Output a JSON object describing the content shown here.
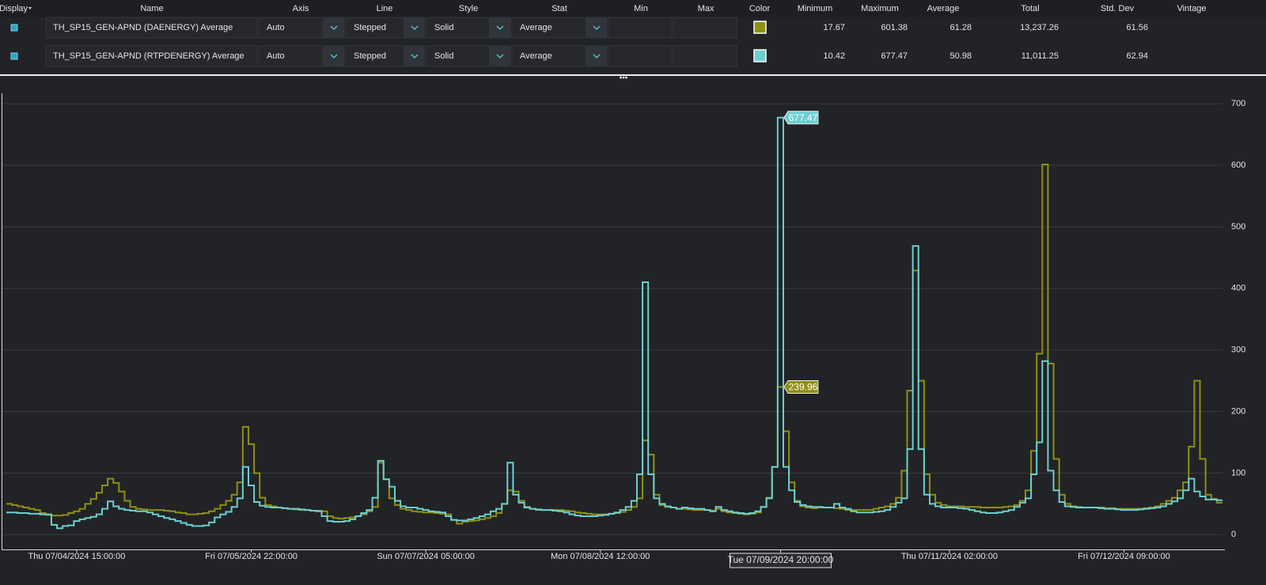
{
  "table": {
    "columns": [
      "Display",
      "Name",
      "Axis",
      "Line",
      "Style",
      "Stat",
      "Min",
      "Max",
      "Color",
      "Minimum",
      "Maximum",
      "Average",
      "Total",
      "Std. Dev",
      "Vintage"
    ],
    "rows": [
      {
        "name": "TH_SP15_GEN-APND (DAENERGY) Average",
        "axis": "Auto",
        "line": "Stepped",
        "style": "Solid",
        "stat": "Average",
        "minimum": "17.67",
        "maximum": "601.38",
        "average": "61.28",
        "total": "13,237.26",
        "std_dev": "61.56"
      },
      {
        "name": "TH_SP15_GEN-APND (RTPDENERGY) Average",
        "axis": "Auto",
        "line": "Stepped",
        "style": "Solid",
        "stat": "Average",
        "minimum": "10.42",
        "maximum": "677.47",
        "average": "50.98",
        "total": "11,011.25",
        "std_dev": "62.94"
      }
    ]
  },
  "chart_data": {
    "type": "step",
    "grid": true,
    "ylim": [
      -24,
      717
    ],
    "yticks": [
      0,
      100,
      200,
      300,
      400,
      500,
      600,
      700
    ],
    "tooltip_x": "07/09/2024 20:00",
    "xticks": [
      {
        "value": "07/04/2024 15:00",
        "label": "Thu 07/04/2024 15:00:00"
      },
      {
        "value": "07/05/2024 22:00",
        "label": "Fri 07/05/2024 22:00:00"
      },
      {
        "value": "07/07/2024 05:00",
        "label": "Sun 07/07/2024 05:00:00"
      },
      {
        "value": "07/08/2024 12:00",
        "label": "Mon 07/08/2024 12:00:00"
      },
      {
        "value": "07/09/2024 20:00",
        "label": "Tue 07/09/2024 20:00:00"
      },
      {
        "value": "07/11/2024 02:00",
        "label": "Thu 07/11/2024 02:00:00"
      },
      {
        "value": "07/12/2024 09:00",
        "label": "Fri 07/12/2024 09:00:00"
      }
    ],
    "x": [
      "07/04/2024 03:00",
      "07/04/2024 04:00",
      "07/04/2024 05:00",
      "07/04/2024 06:00",
      "07/04/2024 07:00",
      "07/04/2024 08:00",
      "07/04/2024 09:00",
      "07/04/2024 10:00",
      "07/04/2024 11:00",
      "07/04/2024 12:00",
      "07/04/2024 13:00",
      "07/04/2024 14:00",
      "07/04/2024 15:00",
      "07/04/2024 16:00",
      "07/04/2024 17:00",
      "07/04/2024 18:00",
      "07/04/2024 19:00",
      "07/04/2024 20:00",
      "07/04/2024 21:00",
      "07/04/2024 22:00",
      "07/04/2024 23:00",
      "07/05/2024 00:00",
      "07/05/2024 01:00",
      "07/05/2024 02:00",
      "07/05/2024 03:00",
      "07/05/2024 04:00",
      "07/05/2024 05:00",
      "07/05/2024 06:00",
      "07/05/2024 07:00",
      "07/05/2024 08:00",
      "07/05/2024 09:00",
      "07/05/2024 10:00",
      "07/05/2024 11:00",
      "07/05/2024 12:00",
      "07/05/2024 13:00",
      "07/05/2024 14:00",
      "07/05/2024 15:00",
      "07/05/2024 16:00",
      "07/05/2024 17:00",
      "07/05/2024 18:00",
      "07/05/2024 19:00",
      "07/05/2024 20:00",
      "07/05/2024 21:00",
      "07/05/2024 22:00",
      "07/05/2024 23:00",
      "07/06/2024 00:00",
      "07/06/2024 01:00",
      "07/06/2024 02:00",
      "07/06/2024 03:00",
      "07/06/2024 04:00",
      "07/06/2024 05:00",
      "07/06/2024 06:00",
      "07/06/2024 07:00",
      "07/06/2024 08:00",
      "07/06/2024 09:00",
      "07/06/2024 10:00",
      "07/06/2024 11:00",
      "07/06/2024 12:00",
      "07/06/2024 13:00",
      "07/06/2024 14:00",
      "07/06/2024 15:00",
      "07/06/2024 16:00",
      "07/06/2024 17:00",
      "07/06/2024 18:00",
      "07/06/2024 19:00",
      "07/06/2024 20:00",
      "07/06/2024 21:00",
      "07/06/2024 22:00",
      "07/06/2024 23:00",
      "07/07/2024 00:00",
      "07/07/2024 01:00",
      "07/07/2024 02:00",
      "07/07/2024 03:00",
      "07/07/2024 04:00",
      "07/07/2024 05:00",
      "07/07/2024 06:00",
      "07/07/2024 07:00",
      "07/07/2024 08:00",
      "07/07/2024 09:00",
      "07/07/2024 10:00",
      "07/07/2024 11:00",
      "07/07/2024 12:00",
      "07/07/2024 13:00",
      "07/07/2024 14:00",
      "07/07/2024 15:00",
      "07/07/2024 16:00",
      "07/07/2024 17:00",
      "07/07/2024 18:00",
      "07/07/2024 19:00",
      "07/07/2024 20:00",
      "07/07/2024 21:00",
      "07/07/2024 22:00",
      "07/07/2024 23:00",
      "07/08/2024 00:00",
      "07/08/2024 01:00",
      "07/08/2024 02:00",
      "07/08/2024 03:00",
      "07/08/2024 04:00",
      "07/08/2024 05:00",
      "07/08/2024 06:00",
      "07/08/2024 07:00",
      "07/08/2024 08:00",
      "07/08/2024 09:00",
      "07/08/2024 10:00",
      "07/08/2024 11:00",
      "07/08/2024 12:00",
      "07/08/2024 13:00",
      "07/08/2024 14:00",
      "07/08/2024 15:00",
      "07/08/2024 16:00",
      "07/08/2024 17:00",
      "07/08/2024 18:00",
      "07/08/2024 19:00",
      "07/08/2024 20:00",
      "07/08/2024 21:00",
      "07/08/2024 22:00",
      "07/08/2024 23:00",
      "07/09/2024 00:00",
      "07/09/2024 01:00",
      "07/09/2024 02:00",
      "07/09/2024 03:00",
      "07/09/2024 04:00",
      "07/09/2024 05:00",
      "07/09/2024 06:00",
      "07/09/2024 07:00",
      "07/09/2024 08:00",
      "07/09/2024 09:00",
      "07/09/2024 10:00",
      "07/09/2024 11:00",
      "07/09/2024 12:00",
      "07/09/2024 13:00",
      "07/09/2024 14:00",
      "07/09/2024 15:00",
      "07/09/2024 16:00",
      "07/09/2024 17:00",
      "07/09/2024 18:00",
      "07/09/2024 19:00",
      "07/09/2024 20:00",
      "07/09/2024 21:00",
      "07/09/2024 22:00",
      "07/09/2024 23:00",
      "07/10/2024 00:00",
      "07/10/2024 01:00",
      "07/10/2024 02:00",
      "07/10/2024 03:00",
      "07/10/2024 04:00",
      "07/10/2024 05:00",
      "07/10/2024 06:00",
      "07/10/2024 07:00",
      "07/10/2024 08:00",
      "07/10/2024 09:00",
      "07/10/2024 10:00",
      "07/10/2024 11:00",
      "07/10/2024 12:00",
      "07/10/2024 13:00",
      "07/10/2024 14:00",
      "07/10/2024 15:00",
      "07/10/2024 16:00",
      "07/10/2024 17:00",
      "07/10/2024 18:00",
      "07/10/2024 19:00",
      "07/10/2024 20:00",
      "07/10/2024 21:00",
      "07/10/2024 22:00",
      "07/10/2024 23:00",
      "07/11/2024 00:00",
      "07/11/2024 01:00",
      "07/11/2024 02:00",
      "07/11/2024 03:00",
      "07/11/2024 04:00",
      "07/11/2024 05:00",
      "07/11/2024 06:00",
      "07/11/2024 07:00",
      "07/11/2024 08:00",
      "07/11/2024 09:00",
      "07/11/2024 10:00",
      "07/11/2024 11:00",
      "07/11/2024 12:00",
      "07/11/2024 13:00",
      "07/11/2024 14:00",
      "07/11/2024 15:00",
      "07/11/2024 16:00",
      "07/11/2024 17:00",
      "07/11/2024 18:00",
      "07/11/2024 19:00",
      "07/11/2024 20:00",
      "07/11/2024 21:00",
      "07/11/2024 22:00",
      "07/11/2024 23:00",
      "07/12/2024 00:00",
      "07/12/2024 01:00",
      "07/12/2024 02:00",
      "07/12/2024 03:00",
      "07/12/2024 04:00",
      "07/12/2024 05:00",
      "07/12/2024 06:00",
      "07/12/2024 07:00",
      "07/12/2024 08:00",
      "07/12/2024 09:00",
      "07/12/2024 10:00",
      "07/12/2024 11:00",
      "07/12/2024 12:00",
      "07/12/2024 13:00",
      "07/12/2024 14:00",
      "07/12/2024 15:00",
      "07/12/2024 16:00",
      "07/12/2024 17:00",
      "07/12/2024 18:00",
      "07/12/2024 19:00",
      "07/12/2024 20:00",
      "07/12/2024 21:00",
      "07/12/2024 22:00",
      "07/12/2024 23:00",
      "07/13/2024 00:00",
      "07/13/2024 01:00",
      "07/13/2024 02:00"
    ],
    "series": [
      {
        "color": "#8f8f14",
        "values": [
          50,
          48,
          46,
          44,
          42,
          40,
          35,
          32,
          31,
          31,
          32,
          35,
          38,
          42,
          50,
          58,
          68,
          80,
          91,
          84,
          70,
          55,
          45,
          42,
          41,
          40,
          40,
          40,
          39,
          38,
          36,
          35,
          33,
          33,
          34,
          35,
          38,
          42,
          48,
          55,
          65,
          85,
          175,
          147,
          100,
          60,
          48,
          46,
          44,
          43,
          42,
          41,
          40,
          40,
          39,
          39,
          38,
          30,
          27,
          26,
          27,
          28,
          30,
          33,
          38,
          45,
          117,
          90,
          59,
          48,
          42,
          40,
          38,
          37,
          36,
          36,
          35,
          34,
          33,
          24,
          17.67,
          21,
          22,
          23,
          25,
          27,
          30,
          35,
          50,
          72,
          70,
          55,
          45,
          42,
          40,
          40,
          40,
          40,
          40,
          39,
          38,
          36,
          35,
          34,
          33,
          33,
          33,
          34,
          35,
          37,
          40,
          45,
          59,
          153,
          130,
          65,
          48,
          45,
          44,
          42,
          42,
          41,
          40,
          40,
          40,
          39,
          42,
          38,
          36,
          35,
          34,
          33,
          34,
          36,
          45,
          60,
          110,
          239.96,
          168,
          85,
          55,
          46,
          44,
          43,
          44,
          44,
          44,
          43,
          42,
          40,
          40,
          40,
          40,
          40,
          42,
          44,
          46,
          50,
          60,
          104,
          234,
          429,
          250,
          98,
          65,
          52,
          48,
          46,
          46,
          46,
          45,
          45,
          45,
          44,
          44,
          44,
          44,
          45,
          46,
          48,
          55,
          72,
          136,
          294,
          601.38,
          278,
          123,
          65,
          50,
          46,
          45,
          44,
          44,
          44,
          44,
          43,
          43,
          42,
          42,
          42,
          42,
          42,
          43,
          44,
          46,
          50,
          55,
          60,
          72,
          85,
          143,
          250,
          123,
          65,
          58,
          52
        ]
      },
      {
        "color": "#6ccfd0",
        "values": [
          36,
          36,
          35,
          35,
          34,
          34,
          33,
          33,
          16,
          10.42,
          14,
          15,
          22,
          25,
          27,
          29,
          33,
          42,
          54,
          46,
          42,
          40,
          39,
          38,
          38,
          36,
          33,
          30,
          27,
          25,
          22,
          19,
          16,
          14,
          14,
          15,
          20,
          28,
          33,
          37,
          45,
          59,
          110,
          80,
          53,
          47,
          45,
          44,
          44,
          43,
          42,
          42,
          41,
          40,
          39,
          38,
          30,
          22,
          21,
          21,
          22,
          25,
          30,
          35,
          40,
          60,
          120,
          90,
          78,
          55,
          46,
          44,
          44,
          42,
          40,
          38,
          37,
          36,
          30,
          24,
          23,
          23,
          25,
          27,
          30,
          33,
          38,
          42,
          50,
          117,
          65,
          52,
          44,
          42,
          41,
          40,
          40,
          39,
          38,
          36,
          33,
          31,
          30,
          30,
          30,
          31,
          32,
          34,
          36,
          40,
          45,
          55,
          98,
          410,
          98,
          59,
          50,
          46,
          44,
          42,
          44,
          43,
          42,
          42,
          40,
          38,
          45,
          40,
          38,
          36,
          35,
          34,
          35,
          38,
          45,
          59,
          110,
          677.47,
          110,
          72,
          53,
          48,
          46,
          45,
          45,
          44,
          44,
          50,
          44,
          42,
          38,
          36,
          36,
          36,
          37,
          38,
          40,
          45,
          52,
          59,
          139,
          469,
          139,
          65,
          50,
          46,
          44,
          44,
          44,
          43,
          42,
          40,
          38,
          36,
          35,
          35,
          36,
          38,
          40,
          45,
          52,
          59,
          98,
          150,
          282,
          104,
          72,
          53,
          46,
          45,
          44,
          44,
          44,
          44,
          43,
          42,
          42,
          41,
          40,
          40,
          40,
          41,
          42,
          43,
          44,
          46,
          50,
          54,
          59,
          72,
          91,
          70,
          62,
          57,
          57,
          56
        ]
      }
    ]
  }
}
